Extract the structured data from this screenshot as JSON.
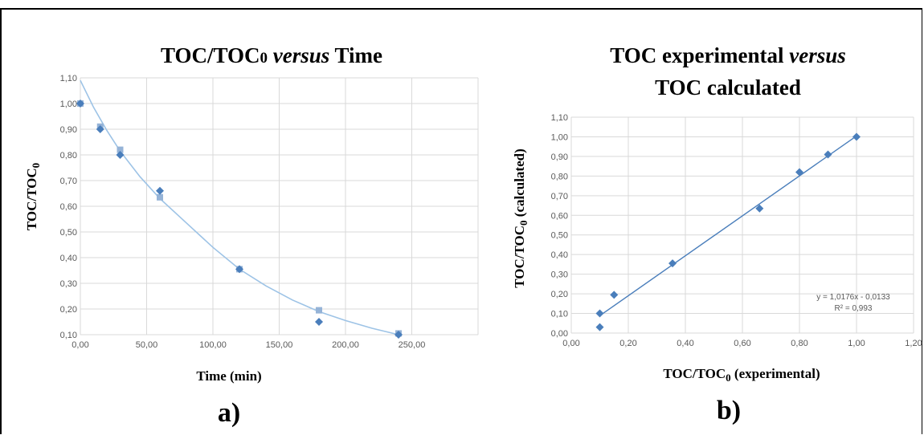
{
  "panels": [
    {
      "letter": "a)",
      "title": {
        "parts": [
          {
            "text": "TOC/TOC",
            "style": "bold"
          },
          {
            "text": "0",
            "style": "bold-small"
          },
          {
            "text": " versus",
            "style": "bold-italic"
          },
          {
            "text": " Time",
            "style": "bold"
          }
        ]
      },
      "ylabel_main": "TOC/TOC",
      "ylabel_sub": "0",
      "xlabel": "Time (min)"
    },
    {
      "letter": "b)",
      "title_line1": {
        "parts": [
          {
            "text": "TOC experimental",
            "style": "bold"
          },
          {
            "text": " versus",
            "style": "bold-italic"
          }
        ]
      },
      "title_line2": "TOC calculated",
      "ylabel_main": "TOC/TOC",
      "ylabel_sub": "0",
      "ylabel_suffix": " (calculated)",
      "xlabel_main": "TOC/TOC",
      "xlabel_sub": "0",
      "xlabel_suffix": " (experimental)",
      "equation_line1": "y = 1,0176x - 0,0133",
      "equation_line2": "R² = 0,993"
    }
  ],
  "chart_data": [
    {
      "type": "scatter",
      "x_ticks": [
        "0,00",
        "50,00",
        "100,00",
        "150,00",
        "200,00",
        "250,00"
      ],
      "y_ticks": [
        "0,10",
        "0,20",
        "0,30",
        "0,40",
        "0,50",
        "0,60",
        "0,70",
        "0,80",
        "0,90",
        "1,00",
        "1,10"
      ],
      "xlim": [
        0,
        300
      ],
      "ylim": [
        0.1,
        1.1
      ],
      "grid": true,
      "series": [
        {
          "marker": "diamond",
          "color": "#4a7ebb",
          "x": [
            0,
            15,
            30,
            60,
            120,
            180,
            240
          ],
          "y": [
            1.0,
            0.9,
            0.8,
            0.66,
            0.355,
            0.15,
            0.1
          ]
        },
        {
          "marker": "square",
          "color": "#95b3d7",
          "x": [
            0,
            15,
            30,
            60,
            120,
            180,
            240
          ],
          "y": [
            1.0,
            0.91,
            0.82,
            0.635,
            0.355,
            0.195,
            0.105
          ]
        }
      ],
      "curve": {
        "color": "#9dc3e6",
        "x": [
          0,
          10,
          20,
          30,
          45,
          60,
          80,
          100,
          120,
          140,
          160,
          180,
          200,
          220,
          240
        ],
        "y": [
          1.09,
          0.985,
          0.895,
          0.815,
          0.715,
          0.63,
          0.535,
          0.44,
          0.355,
          0.29,
          0.235,
          0.19,
          0.155,
          0.125,
          0.1
        ]
      }
    },
    {
      "type": "scatter",
      "x_ticks": [
        "0,00",
        "0,20",
        "0,40",
        "0,60",
        "0,80",
        "1,00",
        "1,20"
      ],
      "y_ticks": [
        "0,00",
        "0,10",
        "0,20",
        "0,30",
        "0,40",
        "0,50",
        "0,60",
        "0,70",
        "0,80",
        "0,90",
        "1,00",
        "1,10"
      ],
      "xlim": [
        0,
        1.2
      ],
      "ylim": [
        0,
        1.1
      ],
      "grid": true,
      "series": [
        {
          "marker": "diamond",
          "color": "#4a7ebb",
          "x": [
            0.1,
            0.1,
            0.15,
            0.355,
            0.66,
            0.8,
            0.9,
            1.0
          ],
          "y": [
            0.03,
            0.1,
            0.195,
            0.355,
            0.635,
            0.82,
            0.91,
            1.0
          ]
        }
      ],
      "trendline": {
        "color": "#4a7ebb",
        "x": [
          0.1,
          1.0
        ],
        "y": [
          0.0885,
          1.0043
        ]
      }
    }
  ]
}
